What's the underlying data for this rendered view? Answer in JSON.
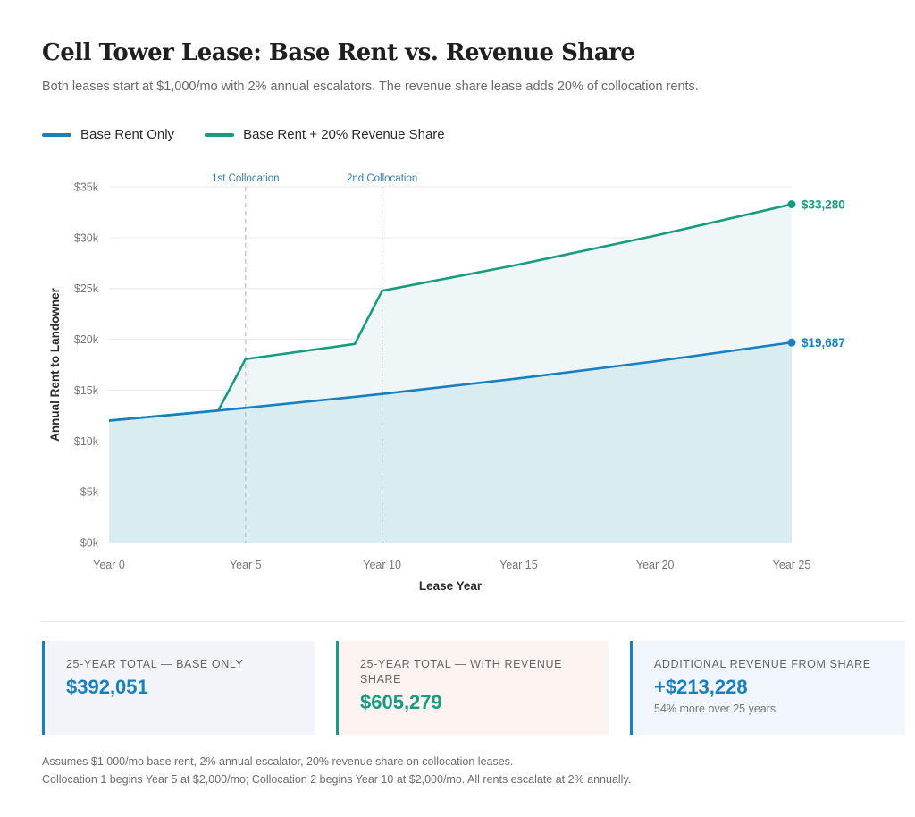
{
  "header": {
    "title": "Cell Tower Lease: Base Rent vs. Revenue Share",
    "subtitle": "Both leases start at $1,000/mo with 2% annual escalators. The revenue share lease adds 20% of collocation rents."
  },
  "colors": {
    "base": "#1a7fc1",
    "share": "#179c82",
    "share_fill": "#eef6f8",
    "base_fill": "#d9edf1"
  },
  "chart_data": {
    "type": "area",
    "xlabel": "Lease Year",
    "ylabel": "Annual Rent to Landowner",
    "xlim": [
      0,
      25
    ],
    "ylim": [
      0,
      35000
    ],
    "x_ticks": [
      0,
      5,
      10,
      15,
      20,
      25
    ],
    "x_tick_labels": [
      "Year 0",
      "Year 5",
      "Year 10",
      "Year 15",
      "Year 20",
      "Year 25"
    ],
    "y_ticks": [
      0,
      5000,
      10000,
      15000,
      20000,
      25000,
      30000,
      35000
    ],
    "y_tick_labels": [
      "$0k",
      "$5k",
      "$10k",
      "$15k",
      "$20k",
      "$25k",
      "$30k",
      "$35k"
    ],
    "grid": true,
    "legend_position": "top-left",
    "series": [
      {
        "name": "Base Rent Only",
        "color": "#1a7fc1",
        "x": [
          0,
          4,
          5,
          9,
          10,
          15,
          20,
          25
        ],
        "y": [
          12000,
          12989,
          13249,
          14341,
          14628,
          16151,
          17831,
          19687
        ],
        "end_label": "$19,687"
      },
      {
        "name": "Base Rent + 20% Revenue Share",
        "color": "#179c82",
        "x": [
          0,
          4,
          5,
          9,
          10,
          15,
          20,
          25
        ],
        "y": [
          12000,
          12989,
          18048,
          19536,
          24770,
          27348,
          30194,
          33280
        ],
        "end_label": "$33,280"
      }
    ],
    "annotations": [
      {
        "x": 5,
        "label": "1st Collocation"
      },
      {
        "x": 10,
        "label": "2nd Collocation"
      }
    ]
  },
  "cards": [
    {
      "label": "25-Year Total — Base Only",
      "value": "$392,051",
      "sub": ""
    },
    {
      "label": "25-Year Total — With Revenue Share",
      "value": "$605,279",
      "sub": ""
    },
    {
      "label": "Additional Revenue From Share",
      "value": "+$213,228",
      "sub": "54% more over 25 years"
    }
  ],
  "notes": [
    "Assumes $1,000/mo base rent, 2% annual escalator, 20% revenue share on collocation leases.",
    "Collocation 1 begins Year 5 at $2,000/mo; Collocation 2 begins Year 10 at $2,000/mo. All rents escalate at 2% annually."
  ]
}
